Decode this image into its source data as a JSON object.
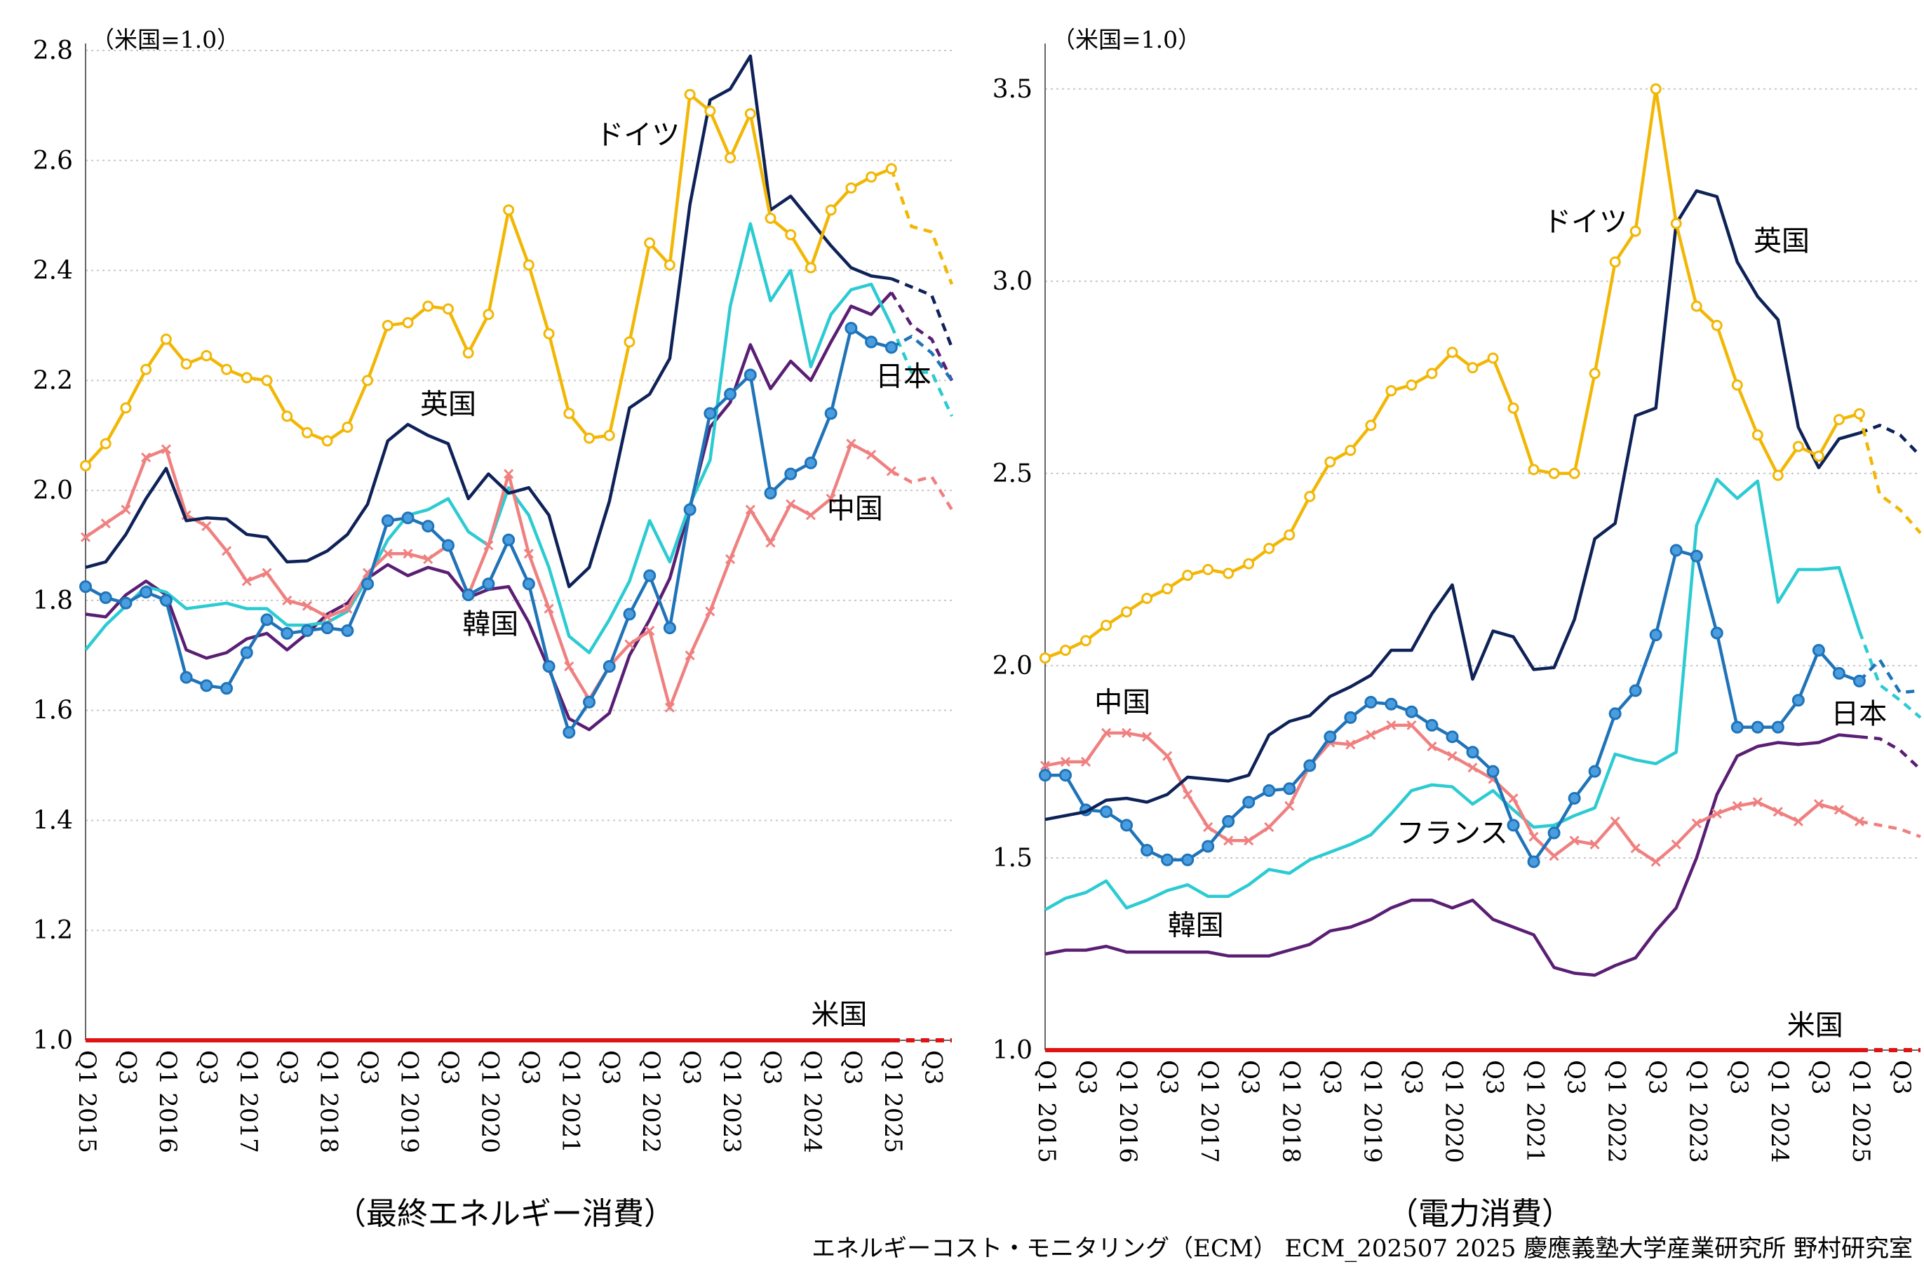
{
  "footer": "エネルギーコスト・モニタリング（ECM） ECM_202507 2025 慶應義塾大学産業研究所 野村研究室",
  "colors": {
    "ドイツ": "#F2B705",
    "英国": "#0E2258",
    "日本": "#1F73B8",
    "中国": "#F08080",
    "韓国": "#5A1E73",
    "フランス": "#2CCBD2",
    "米国": "#E01212"
  },
  "chart_data": [
    {
      "type": "line",
      "title": "（最終エネルギー消費）",
      "unit_label": "（米国=1.0）",
      "ylim": [
        1.0,
        2.8
      ],
      "yticks": [
        "1.0",
        "1.2",
        "1.4",
        "1.6",
        "1.8",
        "2.0",
        "2.2",
        "2.4",
        "2.6",
        "2.8"
      ],
      "grid": true,
      "x_tick_labels": [
        {
          "i": 0,
          "label": "Q1 2015"
        },
        {
          "i": 2,
          "label": "Q3"
        },
        {
          "i": 4,
          "label": "Q1 2016"
        },
        {
          "i": 6,
          "label": "Q3"
        },
        {
          "i": 8,
          "label": "Q1 2017"
        },
        {
          "i": 10,
          "label": "Q3"
        },
        {
          "i": 12,
          "label": "Q1 2018"
        },
        {
          "i": 14,
          "label": "Q3"
        },
        {
          "i": 16,
          "label": "Q1 2019"
        },
        {
          "i": 18,
          "label": "Q3"
        },
        {
          "i": 20,
          "label": "Q1 2020"
        },
        {
          "i": 22,
          "label": "Q3"
        },
        {
          "i": 24,
          "label": "Q1 2021"
        },
        {
          "i": 26,
          "label": "Q3"
        },
        {
          "i": 28,
          "label": "Q1 2022"
        },
        {
          "i": 30,
          "label": "Q3"
        },
        {
          "i": 32,
          "label": "Q1 2023"
        },
        {
          "i": 34,
          "label": "Q3"
        },
        {
          "i": 36,
          "label": "Q1 2024"
        },
        {
          "i": 38,
          "label": "Q3"
        },
        {
          "i": 40,
          "label": "Q1 2025"
        },
        {
          "i": 42,
          "label": "Q3"
        }
      ],
      "n_points": 44,
      "solid_until_index": 40,
      "series": [
        {
          "name": "ドイツ",
          "marker": "circle-open",
          "label": "ドイツ",
          "label_at": [
            29.5,
            2.63
          ],
          "label_anchor": "end",
          "values": [
            2.045,
            2.085,
            2.15,
            2.22,
            2.275,
            2.23,
            2.245,
            2.22,
            2.205,
            2.2,
            2.135,
            2.105,
            2.09,
            2.115,
            2.2,
            2.3,
            2.305,
            2.335,
            2.33,
            2.25,
            2.32,
            2.51,
            2.41,
            2.285,
            2.14,
            2.095,
            2.1,
            2.27,
            2.45,
            2.41,
            2.72,
            2.69,
            2.605,
            2.685,
            2.495,
            2.465,
            2.405,
            2.51,
            2.55,
            2.57,
            2.585,
            2.48,
            2.47,
            2.375
          ]
        },
        {
          "name": "英国",
          "marker": "none",
          "label": "英国",
          "label_at": [
            18,
            2.14
          ],
          "label_anchor": "middle",
          "values": [
            1.86,
            1.87,
            1.92,
            1.985,
            2.04,
            1.945,
            1.95,
            1.948,
            1.92,
            1.915,
            1.87,
            1.872,
            1.89,
            1.92,
            1.975,
            2.09,
            2.12,
            2.1,
            2.085,
            1.985,
            2.03,
            1.995,
            2.005,
            1.955,
            1.825,
            1.86,
            1.98,
            2.15,
            2.175,
            2.24,
            2.52,
            2.71,
            2.73,
            2.79,
            2.51,
            2.535,
            2.49,
            2.445,
            2.405,
            2.39,
            2.385,
            2.37,
            2.355,
            2.26
          ]
        },
        {
          "name": "日本",
          "marker": "circle-filled",
          "label": "日本",
          "label_at": [
            39.2,
            2.19
          ],
          "label_anchor": "start",
          "values": [
            1.825,
            1.805,
            1.795,
            1.815,
            1.8,
            1.66,
            1.645,
            1.64,
            1.705,
            1.765,
            1.74,
            1.745,
            1.75,
            1.745,
            1.83,
            1.945,
            1.95,
            1.935,
            1.9,
            1.81,
            1.83,
            1.91,
            1.83,
            1.68,
            1.56,
            1.615,
            1.68,
            1.775,
            1.845,
            1.75,
            1.965,
            2.14,
            2.175,
            2.21,
            1.995,
            2.03,
            2.05,
            2.14,
            2.295,
            2.27,
            2.26,
            2.28,
            2.25,
            2.2
          ]
        },
        {
          "name": "中国",
          "marker": "cross",
          "label": "中国",
          "label_at": [
            36.8,
            1.95
          ],
          "label_anchor": "start",
          "values": [
            1.915,
            1.94,
            1.965,
            2.06,
            2.075,
            1.955,
            1.935,
            1.89,
            1.835,
            1.85,
            1.8,
            1.79,
            1.77,
            1.785,
            1.85,
            1.885,
            1.885,
            1.875,
            1.9,
            1.81,
            1.9,
            2.03,
            1.885,
            1.785,
            1.68,
            1.62,
            1.68,
            1.72,
            1.745,
            1.605,
            1.7,
            1.78,
            1.875,
            1.965,
            1.905,
            1.975,
            1.955,
            1.985,
            2.085,
            2.065,
            2.035,
            2.015,
            2.025,
            1.965
          ]
        },
        {
          "name": "韓国",
          "marker": "none",
          "label": "韓国",
          "label_at": [
            20.1,
            1.74
          ],
          "label_anchor": "middle",
          "values": [
            1.775,
            1.77,
            1.81,
            1.835,
            1.81,
            1.71,
            1.695,
            1.705,
            1.73,
            1.74,
            1.71,
            1.74,
            1.775,
            1.795,
            1.84,
            1.865,
            1.845,
            1.86,
            1.85,
            1.805,
            1.82,
            1.825,
            1.76,
            1.675,
            1.585,
            1.565,
            1.595,
            1.7,
            1.765,
            1.84,
            1.97,
            2.115,
            2.16,
            2.265,
            2.185,
            2.235,
            2.2,
            2.27,
            2.335,
            2.32,
            2.36,
            2.3,
            2.275,
            2.2
          ]
        },
        {
          "name": "フランス",
          "marker": "none",
          "label": "",
          "label_at": null,
          "label_anchor": "start",
          "values": [
            1.71,
            1.755,
            1.79,
            1.825,
            1.815,
            1.785,
            1.79,
            1.795,
            1.785,
            1.785,
            1.755,
            1.755,
            1.76,
            1.78,
            1.84,
            1.91,
            1.955,
            1.965,
            1.985,
            1.925,
            1.9,
            2.005,
            1.955,
            1.86,
            1.735,
            1.705,
            1.765,
            1.835,
            1.945,
            1.87,
            1.975,
            2.055,
            2.335,
            2.485,
            2.345,
            2.4,
            2.225,
            2.32,
            2.365,
            2.375,
            2.3,
            2.215,
            2.215,
            2.135
          ]
        },
        {
          "name": "米国",
          "marker": "none",
          "label": "米国",
          "label_at": [
            38.8,
            1.03
          ],
          "label_anchor": "end",
          "values": [
            1,
            1,
            1,
            1,
            1,
            1,
            1,
            1,
            1,
            1,
            1,
            1,
            1,
            1,
            1,
            1,
            1,
            1,
            1,
            1,
            1,
            1,
            1,
            1,
            1,
            1,
            1,
            1,
            1,
            1,
            1,
            1,
            1,
            1,
            1,
            1,
            1,
            1,
            1,
            1,
            1,
            1,
            1,
            1
          ]
        }
      ]
    },
    {
      "type": "line",
      "title": "（電力消費）",
      "unit_label": "（米国=1.0）",
      "ylim": [
        1.0,
        3.6
      ],
      "yticks": [
        "1.0",
        "1.5",
        "2.0",
        "2.5",
        "3.0",
        "3.5"
      ],
      "grid": true,
      "x_tick_labels": [
        {
          "i": 0,
          "label": "Q1 2015"
        },
        {
          "i": 2,
          "label": "Q3"
        },
        {
          "i": 4,
          "label": "Q1 2016"
        },
        {
          "i": 6,
          "label": "Q3"
        },
        {
          "i": 8,
          "label": "Q1 2017"
        },
        {
          "i": 10,
          "label": "Q3"
        },
        {
          "i": 12,
          "label": "Q1 2018"
        },
        {
          "i": 14,
          "label": "Q3"
        },
        {
          "i": 16,
          "label": "Q1 2019"
        },
        {
          "i": 18,
          "label": "Q3"
        },
        {
          "i": 20,
          "label": "Q1 2020"
        },
        {
          "i": 22,
          "label": "Q3"
        },
        {
          "i": 24,
          "label": "Q1 2021"
        },
        {
          "i": 26,
          "label": "Q3"
        },
        {
          "i": 28,
          "label": "Q1 2022"
        },
        {
          "i": 30,
          "label": "Q3"
        },
        {
          "i": 32,
          "label": "Q1 2023"
        },
        {
          "i": 34,
          "label": "Q3"
        },
        {
          "i": 36,
          "label": "Q1 2024"
        },
        {
          "i": 38,
          "label": "Q3"
        },
        {
          "i": 40,
          "label": "Q1 2025"
        },
        {
          "i": 42,
          "label": "Q3"
        }
      ],
      "n_points": 44,
      "solid_until_index": 40,
      "series": [
        {
          "name": "ドイツ",
          "marker": "circle-open",
          "label": "ドイツ",
          "label_at": [
            28.6,
            3.13
          ],
          "label_anchor": "end",
          "values": [
            2.02,
            2.04,
            2.065,
            2.105,
            2.14,
            2.175,
            2.2,
            2.235,
            2.25,
            2.24,
            2.265,
            2.305,
            2.34,
            2.44,
            2.53,
            2.56,
            2.625,
            2.715,
            2.73,
            2.76,
            2.815,
            2.775,
            2.8,
            2.67,
            2.51,
            2.5,
            2.5,
            2.76,
            3.05,
            3.13,
            3.5,
            3.15,
            2.935,
            2.885,
            2.73,
            2.6,
            2.495,
            2.57,
            2.545,
            2.64,
            2.655,
            2.445,
            2.405,
            2.345
          ]
        },
        {
          "name": "英国",
          "marker": "none",
          "label": "英国",
          "label_at": [
            34.8,
            3.08
          ],
          "label_anchor": "start",
          "values": [
            1.6,
            1.61,
            1.62,
            1.65,
            1.655,
            1.645,
            1.665,
            1.71,
            1.705,
            1.7,
            1.715,
            1.82,
            1.855,
            1.87,
            1.92,
            1.945,
            1.975,
            2.04,
            2.04,
            2.135,
            2.21,
            1.965,
            2.09,
            2.075,
            1.99,
            1.995,
            2.12,
            2.33,
            2.37,
            2.65,
            2.67,
            3.15,
            3.235,
            3.22,
            3.05,
            2.96,
            2.9,
            2.62,
            2.515,
            2.59,
            2.605,
            2.625,
            2.6,
            2.545
          ]
        },
        {
          "name": "日本",
          "marker": "circle-filled",
          "label": "日本",
          "label_at": [
            38.6,
            1.85
          ],
          "label_anchor": "start",
          "values": [
            1.715,
            1.715,
            1.625,
            1.62,
            1.585,
            1.52,
            1.495,
            1.495,
            1.53,
            1.595,
            1.645,
            1.675,
            1.68,
            1.74,
            1.815,
            1.865,
            1.905,
            1.9,
            1.88,
            1.845,
            1.815,
            1.775,
            1.725,
            1.585,
            1.49,
            1.565,
            1.655,
            1.725,
            1.875,
            1.935,
            2.08,
            2.3,
            2.285,
            2.085,
            1.84,
            1.84,
            1.84,
            1.91,
            2.04,
            1.98,
            1.96,
            2.015,
            1.93,
            1.935
          ]
        },
        {
          "name": "中国",
          "marker": "cross",
          "label": "中国",
          "label_at": [
            3.8,
            1.88
          ],
          "label_anchor": "middle",
          "values": [
            1.74,
            1.75,
            1.75,
            1.825,
            1.825,
            1.815,
            1.765,
            1.665,
            1.58,
            1.545,
            1.545,
            1.58,
            1.635,
            1.74,
            1.8,
            1.795,
            1.82,
            1.845,
            1.845,
            1.79,
            1.765,
            1.735,
            1.705,
            1.655,
            1.555,
            1.505,
            1.545,
            1.535,
            1.595,
            1.525,
            1.49,
            1.535,
            1.59,
            1.615,
            1.635,
            1.645,
            1.62,
            1.595,
            1.64,
            1.625,
            1.595,
            1.585,
            1.575,
            1.555
          ]
        },
        {
          "name": "韓国",
          "marker": "none",
          "label": "韓国",
          "label_at": [
            7.4,
            1.3
          ],
          "label_anchor": "middle",
          "values": [
            1.25,
            1.26,
            1.26,
            1.27,
            1.255,
            1.255,
            1.255,
            1.255,
            1.255,
            1.245,
            1.245,
            1.245,
            1.26,
            1.275,
            1.31,
            1.32,
            1.34,
            1.37,
            1.39,
            1.39,
            1.37,
            1.39,
            1.34,
            1.32,
            1.3,
            1.215,
            1.2,
            1.195,
            1.22,
            1.24,
            1.31,
            1.37,
            1.5,
            1.665,
            1.765,
            1.79,
            1.8,
            1.795,
            1.8,
            1.82,
            1.815,
            1.81,
            1.78,
            1.73
          ]
        },
        {
          "name": "フランス",
          "marker": "none",
          "label": "フランス",
          "label_at": [
            20,
            1.54
          ],
          "label_anchor": "middle",
          "values": [
            1.365,
            1.395,
            1.41,
            1.44,
            1.37,
            1.39,
            1.415,
            1.43,
            1.4,
            1.4,
            1.43,
            1.47,
            1.46,
            1.495,
            1.515,
            1.535,
            1.56,
            1.615,
            1.675,
            1.69,
            1.685,
            1.64,
            1.675,
            1.625,
            1.58,
            1.585,
            1.61,
            1.63,
            1.77,
            1.755,
            1.745,
            1.775,
            2.365,
            2.485,
            2.435,
            2.48,
            2.165,
            2.25,
            2.25,
            2.255,
            2.09,
            1.95,
            1.91,
            1.865
          ]
        },
        {
          "name": "米国",
          "marker": "none",
          "label": "米国",
          "label_at": [
            39.2,
            1.04
          ],
          "label_anchor": "end",
          "values": [
            1,
            1,
            1,
            1,
            1,
            1,
            1,
            1,
            1,
            1,
            1,
            1,
            1,
            1,
            1,
            1,
            1,
            1,
            1,
            1,
            1,
            1,
            1,
            1,
            1,
            1,
            1,
            1,
            1,
            1,
            1,
            1,
            1,
            1,
            1,
            1,
            1,
            1,
            1,
            1,
            1,
            1,
            1,
            1
          ]
        }
      ]
    }
  ]
}
